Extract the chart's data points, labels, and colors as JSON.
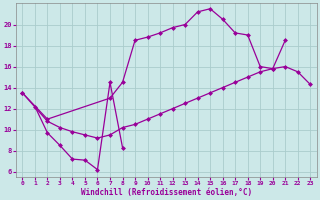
{
  "bg_color": "#cce8e8",
  "line_color": "#990099",
  "grid_color": "#aacccc",
  "xlabel": "Windchill (Refroidissement éolien,°C)",
  "xlim": [
    -0.5,
    23.5
  ],
  "ylim": [
    5.5,
    22.0
  ],
  "yticks": [
    6,
    8,
    10,
    12,
    14,
    16,
    18,
    20
  ],
  "xticks": [
    0,
    1,
    2,
    3,
    4,
    5,
    6,
    7,
    8,
    9,
    10,
    11,
    12,
    13,
    14,
    15,
    16,
    17,
    18,
    19,
    20,
    21,
    22,
    23
  ],
  "line1_x": [
    0,
    2,
    7,
    8,
    9,
    10,
    11,
    12,
    13,
    14,
    15,
    16,
    17,
    18,
    19,
    20,
    21
  ],
  "line1_y": [
    13.5,
    11.0,
    13.0,
    14.5,
    18.5,
    18.8,
    19.2,
    19.7,
    20.0,
    21.2,
    21.5,
    20.5,
    19.2,
    19.0,
    16.0,
    15.8,
    18.5
  ],
  "line2_x": [
    0,
    2,
    3,
    4,
    5,
    6,
    7,
    8,
    9,
    10,
    11,
    12,
    13,
    14,
    15,
    16,
    17,
    18,
    19,
    20,
    21,
    22,
    23
  ],
  "line2_y": [
    13.5,
    10.8,
    10.2,
    9.8,
    9.5,
    9.2,
    9.5,
    10.2,
    10.5,
    11.0,
    11.5,
    12.0,
    12.5,
    13.0,
    13.5,
    14.0,
    14.5,
    15.0,
    15.5,
    15.8,
    16.0,
    15.5,
    14.3
  ],
  "line3_x": [
    1,
    2,
    3,
    4,
    5,
    6,
    7,
    8
  ],
  "line3_y": [
    12.2,
    9.7,
    8.5,
    7.2,
    7.1,
    6.2,
    14.5,
    8.3
  ]
}
